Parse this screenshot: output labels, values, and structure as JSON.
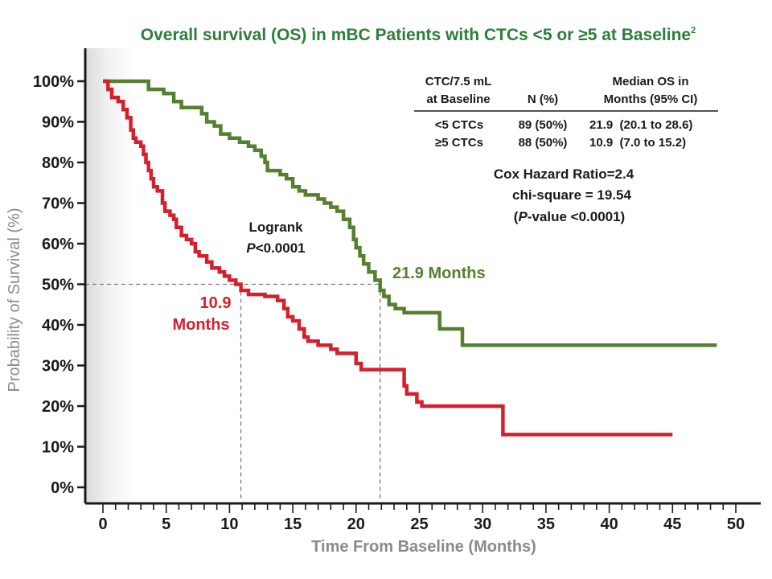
{
  "chart_data": {
    "type": "line",
    "title": "Overall survival (OS) in mBC Patients with CTCs <5 or ≥5 at Baseline",
    "title_superscript": "2",
    "xlabel": "Time From Baseline (Months)",
    "ylabel": "Probability of Survival (%)",
    "xlim": [
      0,
      50
    ],
    "ylim": [
      0,
      100
    ],
    "x_ticks": [
      0,
      5,
      10,
      15,
      20,
      25,
      30,
      35,
      40,
      45,
      50
    ],
    "x_tick_labels": [
      "0",
      "5",
      "10",
      "15",
      "20",
      "25",
      "30",
      "35",
      "40",
      "45",
      "50"
    ],
    "y_ticks": [
      0,
      10,
      20,
      30,
      40,
      50,
      60,
      70,
      80,
      90,
      100
    ],
    "y_tick_labels": [
      "0%",
      "10%",
      "20%",
      "30%",
      "40%",
      "50%",
      "60%",
      "70%",
      "80%",
      "90%",
      "100%"
    ],
    "grid": false,
    "series": [
      {
        "name": "<5 CTCs",
        "color": "#55802f",
        "steps": [
          [
            0,
            100
          ],
          [
            3.3,
            100
          ],
          [
            3.6,
            98
          ],
          [
            4.8,
            97
          ],
          [
            5.6,
            95
          ],
          [
            6.2,
            93.5
          ],
          [
            7.5,
            93.5
          ],
          [
            7.8,
            92
          ],
          [
            8.2,
            90
          ],
          [
            8.8,
            89
          ],
          [
            9.3,
            87
          ],
          [
            10,
            86
          ],
          [
            10.8,
            85
          ],
          [
            11.5,
            84
          ],
          [
            12,
            83
          ],
          [
            12.5,
            81.5
          ],
          [
            12.8,
            80
          ],
          [
            13,
            78
          ],
          [
            13.8,
            78
          ],
          [
            14,
            77
          ],
          [
            14.5,
            76
          ],
          [
            15,
            74
          ],
          [
            15.5,
            73
          ],
          [
            16,
            72
          ],
          [
            17,
            71
          ],
          [
            17.5,
            70
          ],
          [
            18,
            69
          ],
          [
            18.5,
            68
          ],
          [
            19,
            66
          ],
          [
            19.5,
            64
          ],
          [
            19.8,
            61
          ],
          [
            20,
            59
          ],
          [
            20.3,
            57
          ],
          [
            20.6,
            55
          ],
          [
            21,
            53
          ],
          [
            21.5,
            51
          ],
          [
            21.9,
            48.5
          ],
          [
            22.2,
            47
          ],
          [
            22.6,
            45
          ],
          [
            23.1,
            44
          ],
          [
            23.8,
            43
          ],
          [
            26.4,
            43
          ],
          [
            26.6,
            39
          ],
          [
            28,
            39
          ],
          [
            28.4,
            35
          ],
          [
            48.5,
            35
          ]
        ]
      },
      {
        "name": "≥5 CTCs",
        "color": "#d4202e",
        "steps": [
          [
            0,
            100
          ],
          [
            0.4,
            98
          ],
          [
            0.7,
            96
          ],
          [
            1.2,
            95
          ],
          [
            1.6,
            93
          ],
          [
            1.9,
            91
          ],
          [
            2.2,
            88
          ],
          [
            2.4,
            86
          ],
          [
            2.6,
            85
          ],
          [
            3,
            84
          ],
          [
            3.2,
            82
          ],
          [
            3.4,
            80
          ],
          [
            3.6,
            78
          ],
          [
            3.8,
            76
          ],
          [
            4,
            74
          ],
          [
            4.3,
            73
          ],
          [
            4.7,
            70
          ],
          [
            4.9,
            68
          ],
          [
            5.3,
            67
          ],
          [
            5.6,
            66
          ],
          [
            5.8,
            64
          ],
          [
            6.2,
            62
          ],
          [
            6.6,
            61
          ],
          [
            7,
            60
          ],
          [
            7.3,
            58
          ],
          [
            7.6,
            57
          ],
          [
            8.2,
            55.5
          ],
          [
            8.6,
            54
          ],
          [
            9.2,
            53
          ],
          [
            9.6,
            52
          ],
          [
            10,
            51
          ],
          [
            10.5,
            50
          ],
          [
            10.9,
            48.5
          ],
          [
            11.5,
            47.5
          ],
          [
            12.8,
            47
          ],
          [
            13.8,
            46
          ],
          [
            14.3,
            44
          ],
          [
            14.6,
            42
          ],
          [
            15,
            41
          ],
          [
            15.5,
            39
          ],
          [
            15.9,
            37
          ],
          [
            16.2,
            36
          ],
          [
            17,
            35
          ],
          [
            18,
            34
          ],
          [
            18.5,
            33
          ],
          [
            19.8,
            33
          ],
          [
            20,
            30.5
          ],
          [
            20.4,
            29
          ],
          [
            23.5,
            29
          ],
          [
            23.8,
            25
          ],
          [
            24,
            23
          ],
          [
            24.8,
            21
          ],
          [
            25.2,
            20
          ],
          [
            31.4,
            20
          ],
          [
            31.6,
            13
          ],
          [
            45,
            13
          ]
        ]
      }
    ],
    "reference_lines": {
      "y": 50,
      "x": [
        10.9,
        21.9
      ],
      "style": "dashed",
      "color": "#777777"
    },
    "median_labels": {
      "low": {
        "line1": "10.9",
        "line2": "Months",
        "color": "#d4202e"
      },
      "high": {
        "text": "21.9 Months",
        "color": "#55802f"
      }
    },
    "logrank": {
      "line1": "Logrank",
      "p_italic": "P",
      "p_rest": "<0.0001"
    },
    "table": {
      "header": {
        "col1_line1": "CTC/7.5 mL",
        "col1_line2": "at Baseline",
        "col2": "N (%)",
        "col3_line1": "Median OS in",
        "col3_line2": "Months (95% CI)"
      },
      "rows": [
        {
          "group": "<5 CTCs",
          "n": "89 (50%)",
          "median": "21.9  (20.1 to 28.6)",
          "color": "#55802f"
        },
        {
          "group": "≥5 CTCs",
          "n": "88 (50%)",
          "median": "10.9  (7.0 to 15.2)",
          "color": "#d4202e"
        }
      ]
    },
    "cox": {
      "line1": "Cox Hazard Ratio=2.4",
      "line2": "chi-square = 19.54",
      "line3_open": "(",
      "line3_italic": "P",
      "line3_rest": "-value <0.0001)"
    },
    "title_color": "#2e7d3a"
  }
}
